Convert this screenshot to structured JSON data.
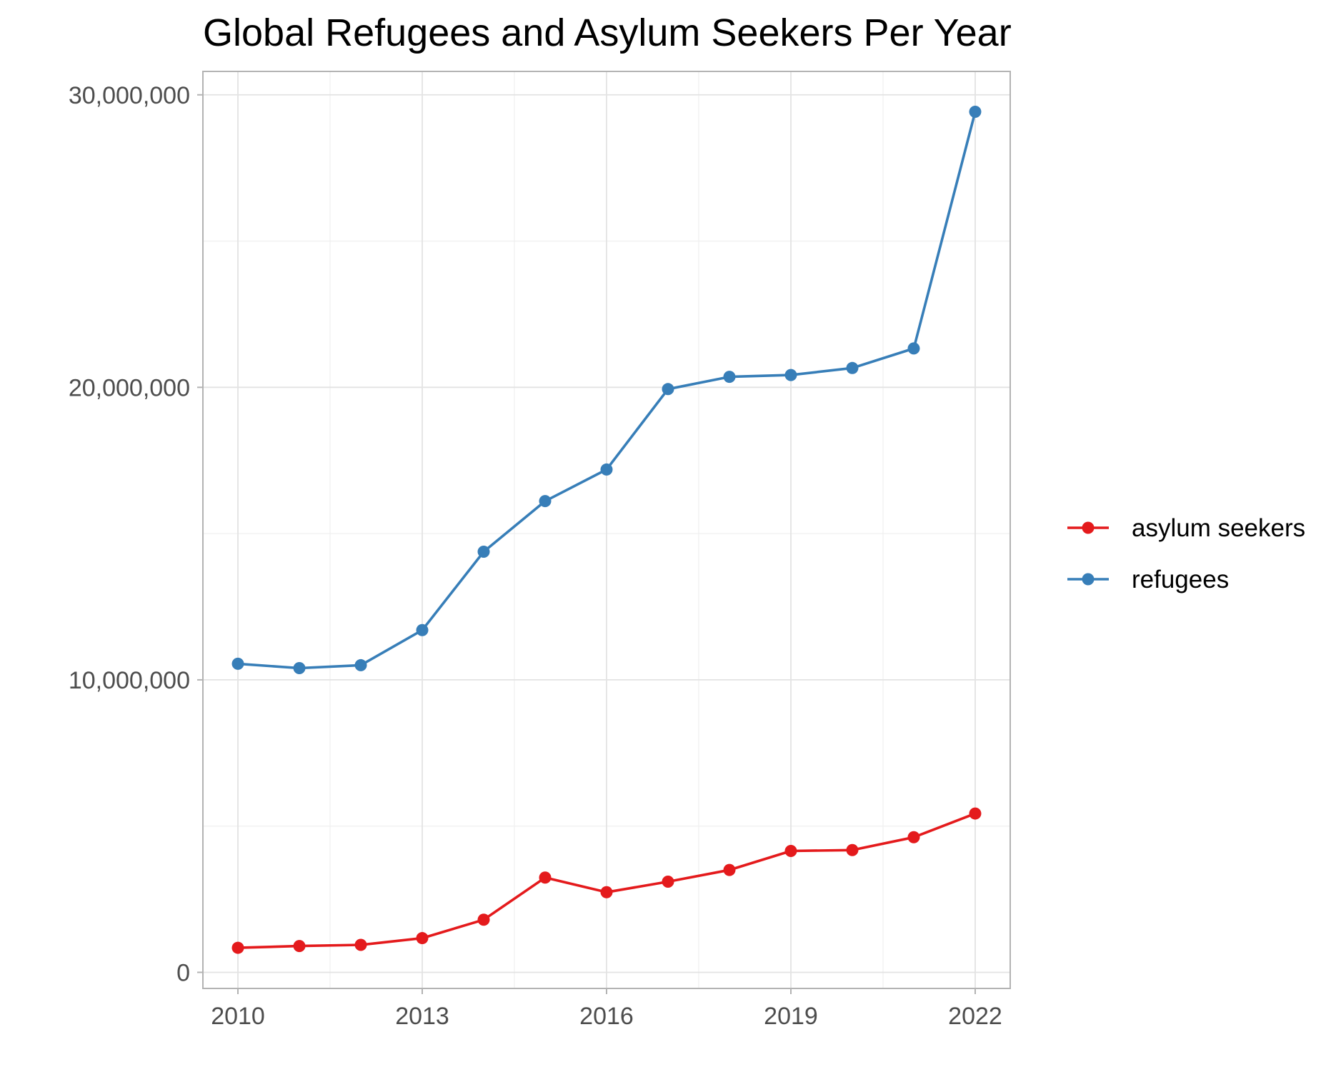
{
  "chart_data": {
    "type": "line",
    "title": "Global Refugees and Asylum Seekers Per Year",
    "xlabel": "",
    "ylabel": "",
    "x": [
      2010,
      2011,
      2012,
      2013,
      2014,
      2015,
      2016,
      2017,
      2018,
      2019,
      2020,
      2021,
      2022
    ],
    "x_ticks": [
      2010,
      2013,
      2016,
      2019,
      2022
    ],
    "x_tick_labels": [
      "2010",
      "2013",
      "2016",
      "2019",
      "2022"
    ],
    "xlim": [
      2009.43,
      2022.57
    ],
    "y_ticks": [
      0,
      10000000,
      20000000,
      30000000
    ],
    "y_tick_labels": [
      "0",
      "10,000,000",
      "20,000,000",
      "30,000,000"
    ],
    "ylim": [
      -550000,
      30800000
    ],
    "grid": true,
    "legend_position": "right",
    "series": [
      {
        "name": "asylum seekers",
        "color": "#e41a1c",
        "values": [
          840000,
          900000,
          940000,
          1170000,
          1800000,
          3240000,
          2740000,
          3100000,
          3500000,
          4150000,
          4180000,
          4620000,
          5430000
        ]
      },
      {
        "name": "refugees",
        "color": "#377eb8",
        "values": [
          10550000,
          10400000,
          10500000,
          11700000,
          14380000,
          16110000,
          17190000,
          19940000,
          20360000,
          20420000,
          20660000,
          21330000,
          29420000
        ]
      }
    ]
  }
}
